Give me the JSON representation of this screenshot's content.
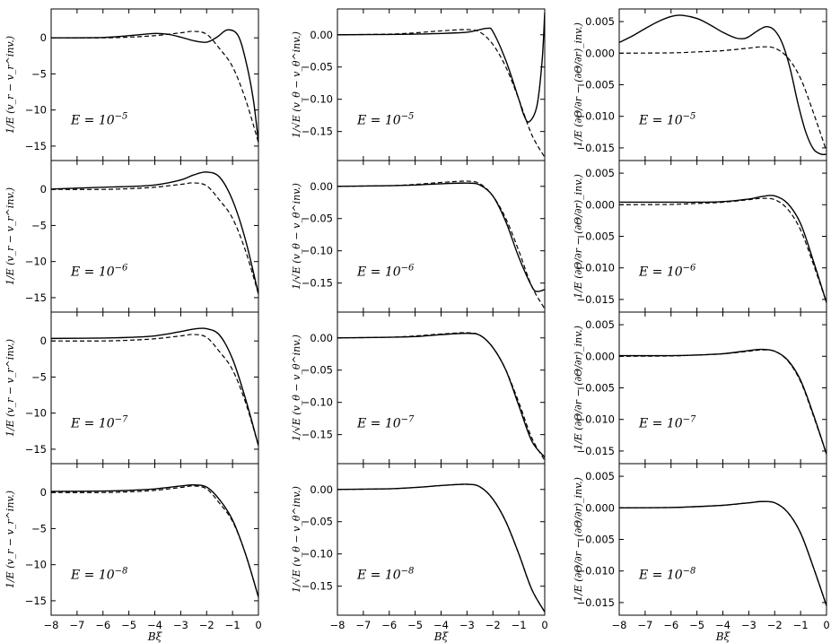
{
  "figure": {
    "column_ylabels": [
      "1/E (v_r − v_r^inv.)",
      "1/√E (v_θ − v_θ^inv.)",
      "1/E (∂Θ/∂r − (∂Θ/∂r)_inv.)"
    ],
    "row_annotations": [
      {
        "base": "E = 10",
        "exp": "−5"
      },
      {
        "base": "E = 10",
        "exp": "−6"
      },
      {
        "base": "E = 10",
        "exp": "−7"
      },
      {
        "base": "E = 10",
        "exp": "−8"
      }
    ],
    "xlabel": "Bξ",
    "line_colors": {
      "solid": "#000000",
      "dashed": "#000000"
    }
  },
  "chart_data": {
    "type": "line",
    "layout": "4 rows x 3 columns, shared x-axis per column",
    "grid": false,
    "legend": "none",
    "x_ticks": [
      -8,
      -7,
      -6,
      -5,
      -4,
      -3,
      -2,
      -1,
      0
    ],
    "x_tick_labels": [
      "−8",
      "−7",
      "−6",
      "−5",
      "−4",
      "−3",
      "−2",
      "−1",
      "0"
    ],
    "xlim": [
      -8,
      0
    ],
    "columns": [
      {
        "ylabel": "1/E (v_r − v_r^inv.)",
        "ylim": [
          -17,
          4
        ],
        "y_ticks": [
          0,
          -5,
          -10,
          -15
        ],
        "y_tick_labels": [
          "0",
          "−5",
          "−10",
          "−15"
        ],
        "dashed": {
          "x": [
            -8,
            -6,
            -5,
            -4,
            -3,
            -2.5,
            -2,
            -1.5,
            -1,
            -0.5,
            0
          ],
          "y": [
            0,
            0,
            0.1,
            0.3,
            0.7,
            0.9,
            0.5,
            -1.5,
            -4,
            -8.5,
            -14.5
          ]
        },
        "rows_solid": [
          {
            "x": [
              -8,
              -6,
              -5,
              -4,
              -3.5,
              -3,
              -2.5,
              -2,
              -1.6,
              -1.2,
              -0.8,
              -0.5,
              -0.2,
              0
            ],
            "y": [
              0,
              0.05,
              0.3,
              0.6,
              0.5,
              0.1,
              -0.4,
              -0.6,
              0.1,
              1.1,
              0.4,
              -3,
              -8.5,
              -14.5
            ]
          },
          {
            "x": [
              -8,
              -6,
              -5,
              -4,
              -3,
              -2.5,
              -2,
              -1.5,
              -1,
              -0.5,
              0
            ],
            "y": [
              0.05,
              0.3,
              0.4,
              0.6,
              1.3,
              2.0,
              2.4,
              1.7,
              -1.5,
              -7,
              -14.5
            ]
          },
          {
            "x": [
              -8,
              -6,
              -5,
              -4,
              -3,
              -2.5,
              -2,
              -1.5,
              -1,
              -0.5,
              0
            ],
            "y": [
              0.35,
              0.4,
              0.5,
              0.7,
              1.3,
              1.65,
              1.7,
              0.8,
              -2.5,
              -8,
              -14.5
            ]
          },
          {
            "x": [
              -8,
              -6,
              -5,
              -4,
              -3,
              -2.5,
              -2,
              -1.5,
              -1,
              -0.5,
              0
            ],
            "y": [
              0.15,
              0.2,
              0.3,
              0.5,
              0.9,
              1.05,
              0.75,
              -1,
              -3.8,
              -8.5,
              -14.5
            ]
          }
        ]
      },
      {
        "ylabel": "1/√E (v_θ − v_θ^inv.)",
        "ylim": [
          -0.195,
          0.04
        ],
        "y_ticks": [
          0.0,
          -0.05,
          -0.1,
          -0.15
        ],
        "y_tick_labels": [
          "0.00",
          "−0.05",
          "−0.10",
          "−0.15"
        ],
        "dashed": {
          "x": [
            -8,
            -6,
            -5,
            -4,
            -3,
            -2.5,
            -2,
            -1.5,
            -1,
            -0.5,
            0
          ],
          "y": [
            0,
            0.001,
            0.003,
            0.006,
            0.008,
            0.004,
            -0.015,
            -0.05,
            -0.1,
            -0.155,
            -0.19
          ]
        },
        "rows_solid": [
          {
            "x": [
              -8,
              -6,
              -5,
              -4,
              -3,
              -2.5,
              -2.2,
              -2,
              -1.5,
              -1,
              -0.8,
              -0.6,
              -0.3,
              -0.1,
              0
            ],
            "y": [
              0,
              0.0005,
              0.001,
              0.002,
              0.004,
              0.008,
              0.01,
              0.005,
              -0.04,
              -0.1,
              -0.125,
              -0.135,
              -0.11,
              -0.04,
              0.035
            ]
          },
          {
            "x": [
              -8,
              -6,
              -5,
              -4,
              -3,
              -2.5,
              -2,
              -1.5,
              -1,
              -0.5,
              -0.3,
              0
            ],
            "y": [
              0,
              0.001,
              0.002,
              0.004,
              0.005,
              0.002,
              -0.015,
              -0.055,
              -0.11,
              -0.155,
              -0.163,
              -0.16
            ]
          },
          {
            "x": [
              -8,
              -6,
              -5,
              -4,
              -3,
              -2.5,
              -2,
              -1.5,
              -1,
              -0.5,
              0
            ],
            "y": [
              0,
              0.001,
              0.002,
              0.005,
              0.007,
              0.004,
              -0.015,
              -0.05,
              -0.105,
              -0.16,
              -0.185
            ]
          },
          {
            "x": [
              -8,
              -6,
              -5,
              -4,
              -3,
              -2.5,
              -2,
              -1.5,
              -1,
              -0.5,
              0
            ],
            "y": [
              0,
              0.001,
              0.003,
              0.006,
              0.008,
              0.004,
              -0.015,
              -0.05,
              -0.1,
              -0.155,
              -0.19
            ]
          }
        ]
      },
      {
        "ylabel": "1/E (∂Θ/∂r − (∂Θ/∂r)_inv.)",
        "ylim": [
          -0.017,
          0.007
        ],
        "y_ticks": [
          0.005,
          0.0,
          -0.005,
          -0.01,
          -0.015
        ],
        "y_tick_labels": [
          "0.005",
          "0.000",
          "−0.005",
          "−0.010",
          "−0.015"
        ],
        "dashed": {
          "x": [
            -8,
            -6,
            -5,
            -4,
            -3,
            -2.5,
            -2,
            -1.5,
            -1,
            -0.5,
            0
          ],
          "y": [
            0,
            5e-05,
            0.0002,
            0.0004,
            0.0008,
            0.001,
            0.0008,
            -0.0007,
            -0.004,
            -0.0095,
            -0.0155
          ]
        },
        "rows_solid": [
          {
            "x": [
              -8,
              -7.5,
              -7,
              -6.5,
              -6,
              -5.6,
              -5,
              -4.5,
              -4,
              -3.5,
              -3.2,
              -3,
              -2.6,
              -2.3,
              -2,
              -1.7,
              -1.4,
              -1.1,
              -0.8,
              -0.5,
              -0.2,
              0
            ],
            "y": [
              0.0017,
              0.0027,
              0.0039,
              0.005,
              0.0058,
              0.006,
              0.0055,
              0.0045,
              0.0033,
              0.0024,
              0.0023,
              0.0026,
              0.0037,
              0.0042,
              0.0036,
              0.0015,
              -0.0025,
              -0.008,
              -0.0125,
              -0.0152,
              -0.016,
              -0.016
            ]
          },
          {
            "x": [
              -8,
              -6,
              -5,
              -4,
              -3,
              -2.5,
              -2,
              -1.5,
              -1,
              -0.5,
              0
            ],
            "y": [
              0.0004,
              0.0004,
              0.0004,
              0.0005,
              0.0009,
              0.0013,
              0.0014,
              0.0002,
              -0.003,
              -0.009,
              -0.0155
            ]
          },
          {
            "x": [
              -8,
              -6,
              -5,
              -4,
              -3,
              -2.5,
              -2,
              -1.5,
              -1,
              -0.5,
              0
            ],
            "y": [
              0.0001,
              0.0001,
              0.0002,
              0.0004,
              0.0009,
              0.0011,
              0.0008,
              -0.0006,
              -0.0038,
              -0.0093,
              -0.0155
            ]
          },
          {
            "x": [
              -8,
              -6,
              -5,
              -4,
              -3,
              -2.5,
              -2,
              -1.5,
              -1,
              -0.5,
              0
            ],
            "y": [
              0,
              5e-05,
              0.0002,
              0.0004,
              0.0008,
              0.001,
              0.0008,
              -0.0007,
              -0.004,
              -0.0095,
              -0.0155
            ]
          }
        ]
      }
    ]
  }
}
